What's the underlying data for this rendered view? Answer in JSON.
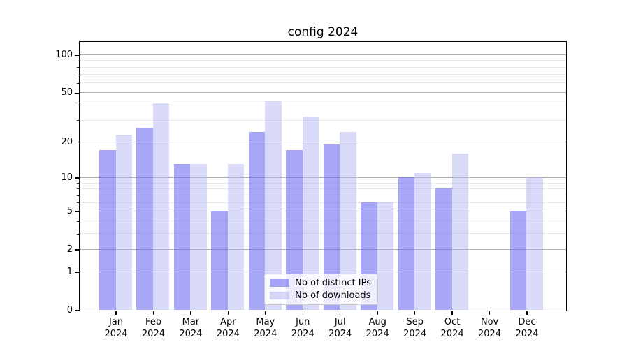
{
  "chart_data": {
    "type": "bar",
    "title": "config 2024",
    "categories": [
      "Jan 2024",
      "Feb 2024",
      "Mar 2024",
      "Apr 2024",
      "May 2024",
      "Jun 2024",
      "Jul 2024",
      "Aug 2024",
      "Sep 2024",
      "Oct 2024",
      "Nov 2024",
      "Dec 2024"
    ],
    "series": [
      {
        "name": "Nb of distinct IPs",
        "color": "#6868f0",
        "fill_alpha": 0.58,
        "values": [
          17,
          26,
          13,
          5,
          24,
          17,
          19,
          6,
          10,
          8,
          0,
          5
        ]
      },
      {
        "name": "Nb of downloads",
        "color": "#aaaaf0",
        "fill_alpha": 0.45,
        "values": [
          23,
          41,
          13,
          13,
          43,
          32,
          24,
          6,
          11,
          16,
          0,
          10
        ]
      }
    ],
    "yscale": "log10(1+x)",
    "ylim": [
      0,
      128
    ],
    "y_major_ticks": [
      0,
      1,
      2,
      5,
      10,
      20,
      50,
      100
    ],
    "y_minor_ticks": [
      3,
      4,
      6,
      7,
      8,
      9,
      30,
      40,
      60,
      70,
      80,
      90
    ],
    "xlabel": "",
    "ylabel": "",
    "grid": "horizontal major+minor",
    "legend_position": "lower center inside plot",
    "axis_color": "#000000",
    "major_grid_color": "#b2b2b2",
    "minor_grid_color": "#e9e9e9"
  }
}
